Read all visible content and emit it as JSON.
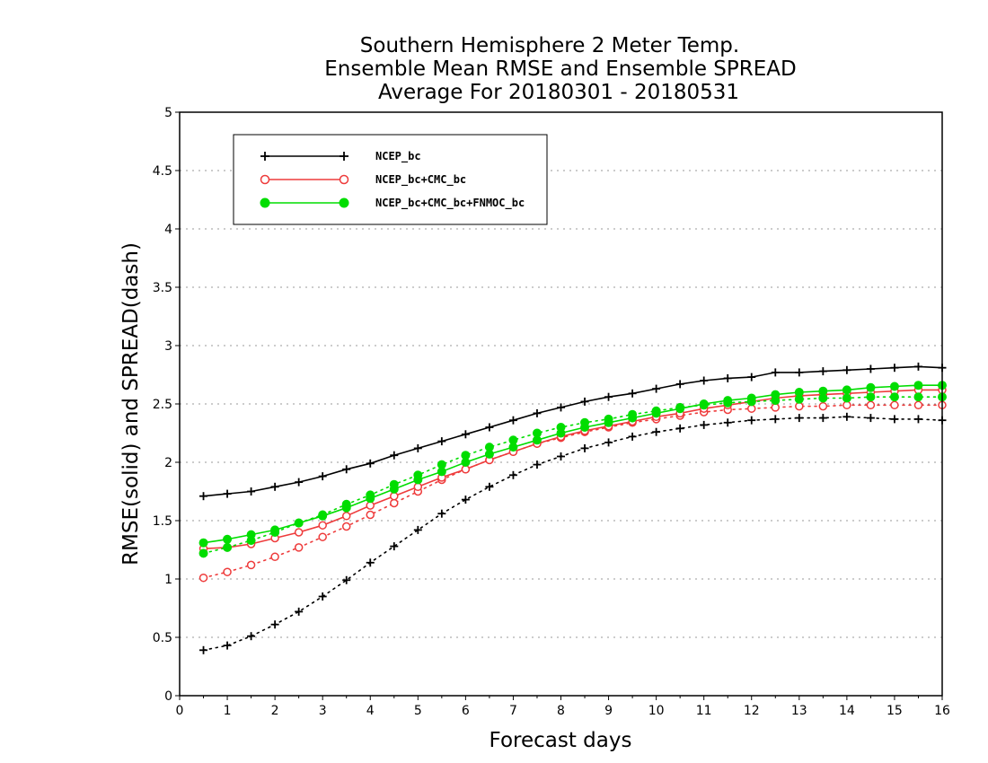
{
  "chart_data": {
    "type": "line",
    "title": [
      "Southern Hemisphere 2 Meter Temp.",
      "Ensemble Mean RMSE and Ensemble SPREAD",
      "Average For 20180301 - 20180531"
    ],
    "xlabel": "Forecast days",
    "ylabel": "RMSE(solid) and SPREAD(dash)",
    "xlim": [
      0,
      16
    ],
    "ylim": [
      0,
      5
    ],
    "xticks": [
      "0",
      "1",
      "2",
      "3",
      "4",
      "5",
      "6",
      "7",
      "8",
      "9",
      "10",
      "11",
      "12",
      "13",
      "14",
      "15",
      "16"
    ],
    "yticks": [
      "0",
      "0.5",
      "1",
      "1.5",
      "2",
      "2.5",
      "3",
      "3.5",
      "4",
      "4.5",
      "5"
    ],
    "grid": "horizontal dotted",
    "legend_position": "top-left",
    "x": [
      0.5,
      1,
      1.5,
      2,
      2.5,
      3,
      3.5,
      4,
      4.5,
      5,
      5.5,
      6,
      6.5,
      7,
      7.5,
      8,
      8.5,
      9,
      9.5,
      10,
      10.5,
      11,
      11.5,
      12,
      12.5,
      13,
      13.5,
      14,
      14.5,
      15,
      15.5,
      16
    ],
    "series": [
      {
        "name": "NCEP_bc",
        "color": "#000000",
        "marker": "plus",
        "rmse": [
          1.71,
          1.73,
          1.75,
          1.79,
          1.83,
          1.88,
          1.94,
          1.99,
          2.06,
          2.12,
          2.18,
          2.24,
          2.3,
          2.36,
          2.42,
          2.47,
          2.52,
          2.56,
          2.59,
          2.63,
          2.67,
          2.7,
          2.72,
          2.73,
          2.77,
          2.77,
          2.78,
          2.79,
          2.8,
          2.81,
          2.82,
          2.81
        ],
        "spread": [
          0.39,
          0.43,
          0.51,
          0.61,
          0.72,
          0.85,
          0.99,
          1.14,
          1.28,
          1.42,
          1.56,
          1.68,
          1.79,
          1.89,
          1.98,
          2.05,
          2.12,
          2.17,
          2.22,
          2.26,
          2.29,
          2.32,
          2.34,
          2.36,
          2.37,
          2.38,
          2.38,
          2.39,
          2.38,
          2.37,
          2.37,
          2.36
        ]
      },
      {
        "name": "NCEP_bc+CMC_bc",
        "color": "#ee3b3b",
        "marker": "open-circle",
        "rmse": [
          1.26,
          1.27,
          1.3,
          1.35,
          1.4,
          1.46,
          1.54,
          1.63,
          1.71,
          1.79,
          1.87,
          1.94,
          2.02,
          2.09,
          2.16,
          2.22,
          2.27,
          2.31,
          2.35,
          2.39,
          2.42,
          2.46,
          2.49,
          2.52,
          2.55,
          2.57,
          2.58,
          2.59,
          2.6,
          2.61,
          2.62,
          2.62
        ],
        "spread": [
          1.01,
          1.06,
          1.12,
          1.19,
          1.27,
          1.36,
          1.45,
          1.55,
          1.65,
          1.75,
          1.85,
          1.94,
          2.02,
          2.09,
          2.16,
          2.21,
          2.26,
          2.3,
          2.34,
          2.37,
          2.4,
          2.43,
          2.45,
          2.46,
          2.47,
          2.48,
          2.48,
          2.49,
          2.49,
          2.49,
          2.49,
          2.49
        ]
      },
      {
        "name": "NCEP_bc+CMC_bc+FNMOC_bc",
        "color": "#00dd00",
        "marker": "filled-circle",
        "rmse": [
          1.31,
          1.34,
          1.38,
          1.42,
          1.48,
          1.54,
          1.61,
          1.69,
          1.77,
          1.85,
          1.92,
          2.0,
          2.07,
          2.13,
          2.19,
          2.25,
          2.3,
          2.34,
          2.38,
          2.42,
          2.46,
          2.5,
          2.53,
          2.55,
          2.58,
          2.6,
          2.61,
          2.62,
          2.64,
          2.65,
          2.66,
          2.66
        ],
        "spread": [
          1.22,
          1.27,
          1.33,
          1.4,
          1.48,
          1.55,
          1.64,
          1.72,
          1.81,
          1.89,
          1.98,
          2.06,
          2.13,
          2.19,
          2.25,
          2.3,
          2.34,
          2.37,
          2.41,
          2.44,
          2.47,
          2.49,
          2.51,
          2.52,
          2.53,
          2.54,
          2.55,
          2.55,
          2.56,
          2.56,
          2.56,
          2.56
        ]
      }
    ]
  }
}
